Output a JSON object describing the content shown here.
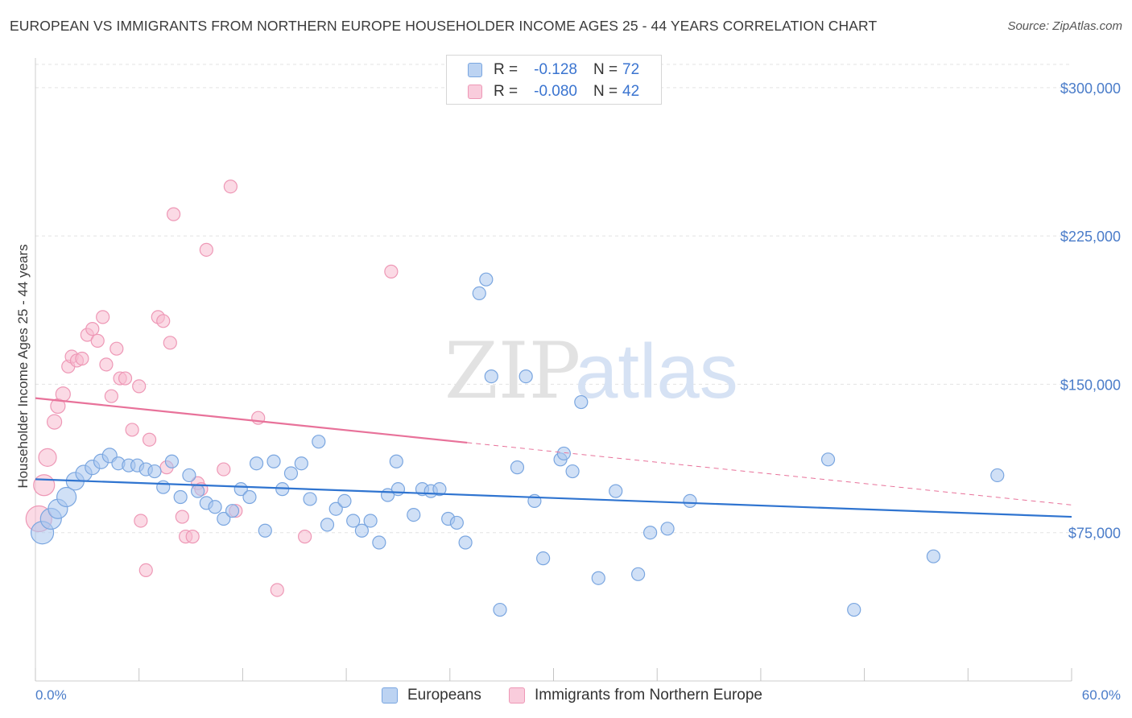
{
  "title": "EUROPEAN VS IMMIGRANTS FROM NORTHERN EUROPE HOUSEHOLDER INCOME AGES 25 - 44 YEARS CORRELATION CHART",
  "source": "Source: ZipAtlas.com",
  "watermark": {
    "zip": "ZIP",
    "atlas": "atlas"
  },
  "colors": {
    "blue_fill": "#a9c6ee",
    "blue_stroke": "#7aa6e0",
    "blue_line": "#2f74d0",
    "pink_fill": "#f7bcd0",
    "pink_stroke": "#ee98b6",
    "pink_line": "#e8729a",
    "tick_text": "#4a7cc9",
    "grid": "#e3e3e3"
  },
  "stats": {
    "rows": [
      {
        "r_label": "R =",
        "r_value": "-0.128",
        "n_label": "N =",
        "n_value": "72"
      },
      {
        "r_label": "R =",
        "r_value": "-0.080",
        "n_label": "N =",
        "n_value": "42"
      }
    ]
  },
  "legend": {
    "europeans": "Europeans",
    "immigrants": "Immigrants from Northern Europe"
  },
  "chart_data": {
    "type": "scatter",
    "title": "EUROPEAN VS IMMIGRANTS FROM NORTHERN EUROPE HOUSEHOLDER INCOME AGES 25 - 44 YEARS CORRELATION CHART",
    "xlabel": "",
    "ylabel": "Householder Income Ages 25 - 44 years",
    "xlim": [
      0,
      60
    ],
    "ylim": [
      0,
      315000
    ],
    "x_tick_labels": {
      "min": "0.0%",
      "max": "60.0%"
    },
    "y_ticks": [
      {
        "value": 75000,
        "label": "$75,000"
      },
      {
        "value": 150000,
        "label": "$150,000"
      },
      {
        "value": 225000,
        "label": "$225,000"
      },
      {
        "value": 300000,
        "label": "$300,000"
      }
    ],
    "grid": true,
    "series": [
      {
        "name": "Europeans",
        "r": -0.128,
        "n": 72,
        "trend": {
          "x0": 0,
          "y0": 102000,
          "x1": 60,
          "y1": 83000,
          "dashed_from": null
        },
        "points": [
          [
            0.4,
            75000,
            14
          ],
          [
            0.9,
            82000,
            13
          ],
          [
            1.3,
            87000,
            12
          ],
          [
            1.8,
            93000,
            12
          ],
          [
            2.3,
            101000,
            11
          ],
          [
            2.8,
            105000,
            10
          ],
          [
            3.3,
            108000,
            9
          ],
          [
            3.8,
            111000,
            9
          ],
          [
            4.3,
            114000,
            9
          ],
          [
            4.8,
            110000,
            8
          ],
          [
            5.4,
            109000,
            8
          ],
          [
            5.9,
            109000,
            8
          ],
          [
            6.4,
            107000,
            8
          ],
          [
            6.9,
            106000,
            8
          ],
          [
            7.4,
            98000,
            8
          ],
          [
            7.9,
            111000,
            8
          ],
          [
            8.4,
            93000,
            8
          ],
          [
            8.9,
            104000,
            8
          ],
          [
            9.4,
            96000,
            8
          ],
          [
            9.9,
            90000,
            8
          ],
          [
            10.4,
            88000,
            8
          ],
          [
            10.9,
            82000,
            8
          ],
          [
            11.4,
            86000,
            8
          ],
          [
            11.9,
            97000,
            8
          ],
          [
            12.4,
            93000,
            8
          ],
          [
            12.8,
            110000,
            8
          ],
          [
            13.3,
            76000,
            8
          ],
          [
            13.8,
            111000,
            8
          ],
          [
            14.3,
            97000,
            8
          ],
          [
            14.8,
            105000,
            8
          ],
          [
            15.4,
            110000,
            8
          ],
          [
            15.9,
            92000,
            8
          ],
          [
            16.4,
            121000,
            8
          ],
          [
            16.9,
            79000,
            8
          ],
          [
            17.4,
            87000,
            8
          ],
          [
            17.9,
            91000,
            8
          ],
          [
            18.4,
            81000,
            8
          ],
          [
            18.9,
            76000,
            8
          ],
          [
            19.4,
            81000,
            8
          ],
          [
            19.9,
            70000,
            8
          ],
          [
            20.4,
            94000,
            8
          ],
          [
            20.9,
            111000,
            8
          ],
          [
            21.0,
            97000,
            8
          ],
          [
            21.9,
            84000,
            8
          ],
          [
            22.4,
            97000,
            8
          ],
          [
            22.9,
            96000,
            8
          ],
          [
            23.4,
            97000,
            8
          ],
          [
            23.9,
            82000,
            8
          ],
          [
            24.4,
            80000,
            8
          ],
          [
            24.9,
            70000,
            8
          ],
          [
            25.7,
            196000,
            8
          ],
          [
            26.1,
            203000,
            8
          ],
          [
            26.4,
            154000,
            8
          ],
          [
            26.9,
            36000,
            8
          ],
          [
            27.9,
            108000,
            8
          ],
          [
            28.4,
            154000,
            8
          ],
          [
            28.9,
            91000,
            8
          ],
          [
            29.4,
            62000,
            8
          ],
          [
            30.4,
            112000,
            8
          ],
          [
            30.6,
            115000,
            8
          ],
          [
            31.1,
            106000,
            8
          ],
          [
            31.6,
            141000,
            8
          ],
          [
            32.6,
            52000,
            8
          ],
          [
            33.6,
            96000,
            8
          ],
          [
            34.9,
            54000,
            8
          ],
          [
            35.6,
            75000,
            8
          ],
          [
            36.6,
            77000,
            8
          ],
          [
            37.9,
            91000,
            8
          ],
          [
            45.9,
            112000,
            8
          ],
          [
            47.4,
            36000,
            8
          ],
          [
            52.0,
            63000,
            8
          ],
          [
            55.7,
            104000,
            8
          ]
        ]
      },
      {
        "name": "Immigrants from Northern Europe",
        "r": -0.08,
        "n": 42,
        "trend": {
          "x0": 0,
          "y0": 143000,
          "x1": 60,
          "y1": 89000,
          "dashed_from": 25
        },
        "points": [
          [
            0.2,
            82000,
            16
          ],
          [
            0.5,
            99000,
            13
          ],
          [
            0.7,
            113000,
            11
          ],
          [
            1.1,
            131000,
            9
          ],
          [
            1.3,
            139000,
            9
          ],
          [
            1.6,
            145000,
            9
          ],
          [
            1.9,
            159000,
            8
          ],
          [
            2.1,
            164000,
            8
          ],
          [
            2.4,
            162000,
            8
          ],
          [
            2.7,
            163000,
            8
          ],
          [
            3.0,
            175000,
            8
          ],
          [
            3.3,
            178000,
            8
          ],
          [
            3.6,
            172000,
            8
          ],
          [
            3.9,
            184000,
            8
          ],
          [
            4.1,
            160000,
            8
          ],
          [
            4.4,
            144000,
            8
          ],
          [
            4.7,
            168000,
            8
          ],
          [
            4.9,
            153000,
            8
          ],
          [
            5.2,
            153000,
            8
          ],
          [
            5.6,
            127000,
            8
          ],
          [
            6.0,
            149000,
            8
          ],
          [
            6.1,
            81000,
            8
          ],
          [
            6.4,
            56000,
            8
          ],
          [
            6.6,
            122000,
            8
          ],
          [
            7.1,
            184000,
            8
          ],
          [
            7.4,
            182000,
            8
          ],
          [
            7.6,
            108000,
            8
          ],
          [
            7.8,
            171000,
            8
          ],
          [
            8.0,
            236000,
            8
          ],
          [
            8.5,
            83000,
            8
          ],
          [
            8.7,
            73000,
            8
          ],
          [
            9.1,
            73000,
            8
          ],
          [
            9.4,
            100000,
            8
          ],
          [
            9.6,
            97000,
            8
          ],
          [
            9.9,
            218000,
            8
          ],
          [
            10.9,
            107000,
            8
          ],
          [
            11.3,
            250000,
            8
          ],
          [
            11.6,
            86000,
            8
          ],
          [
            12.9,
            133000,
            8
          ],
          [
            14.0,
            46000,
            8
          ],
          [
            15.6,
            73000,
            8
          ],
          [
            20.6,
            207000,
            8
          ]
        ]
      }
    ]
  }
}
